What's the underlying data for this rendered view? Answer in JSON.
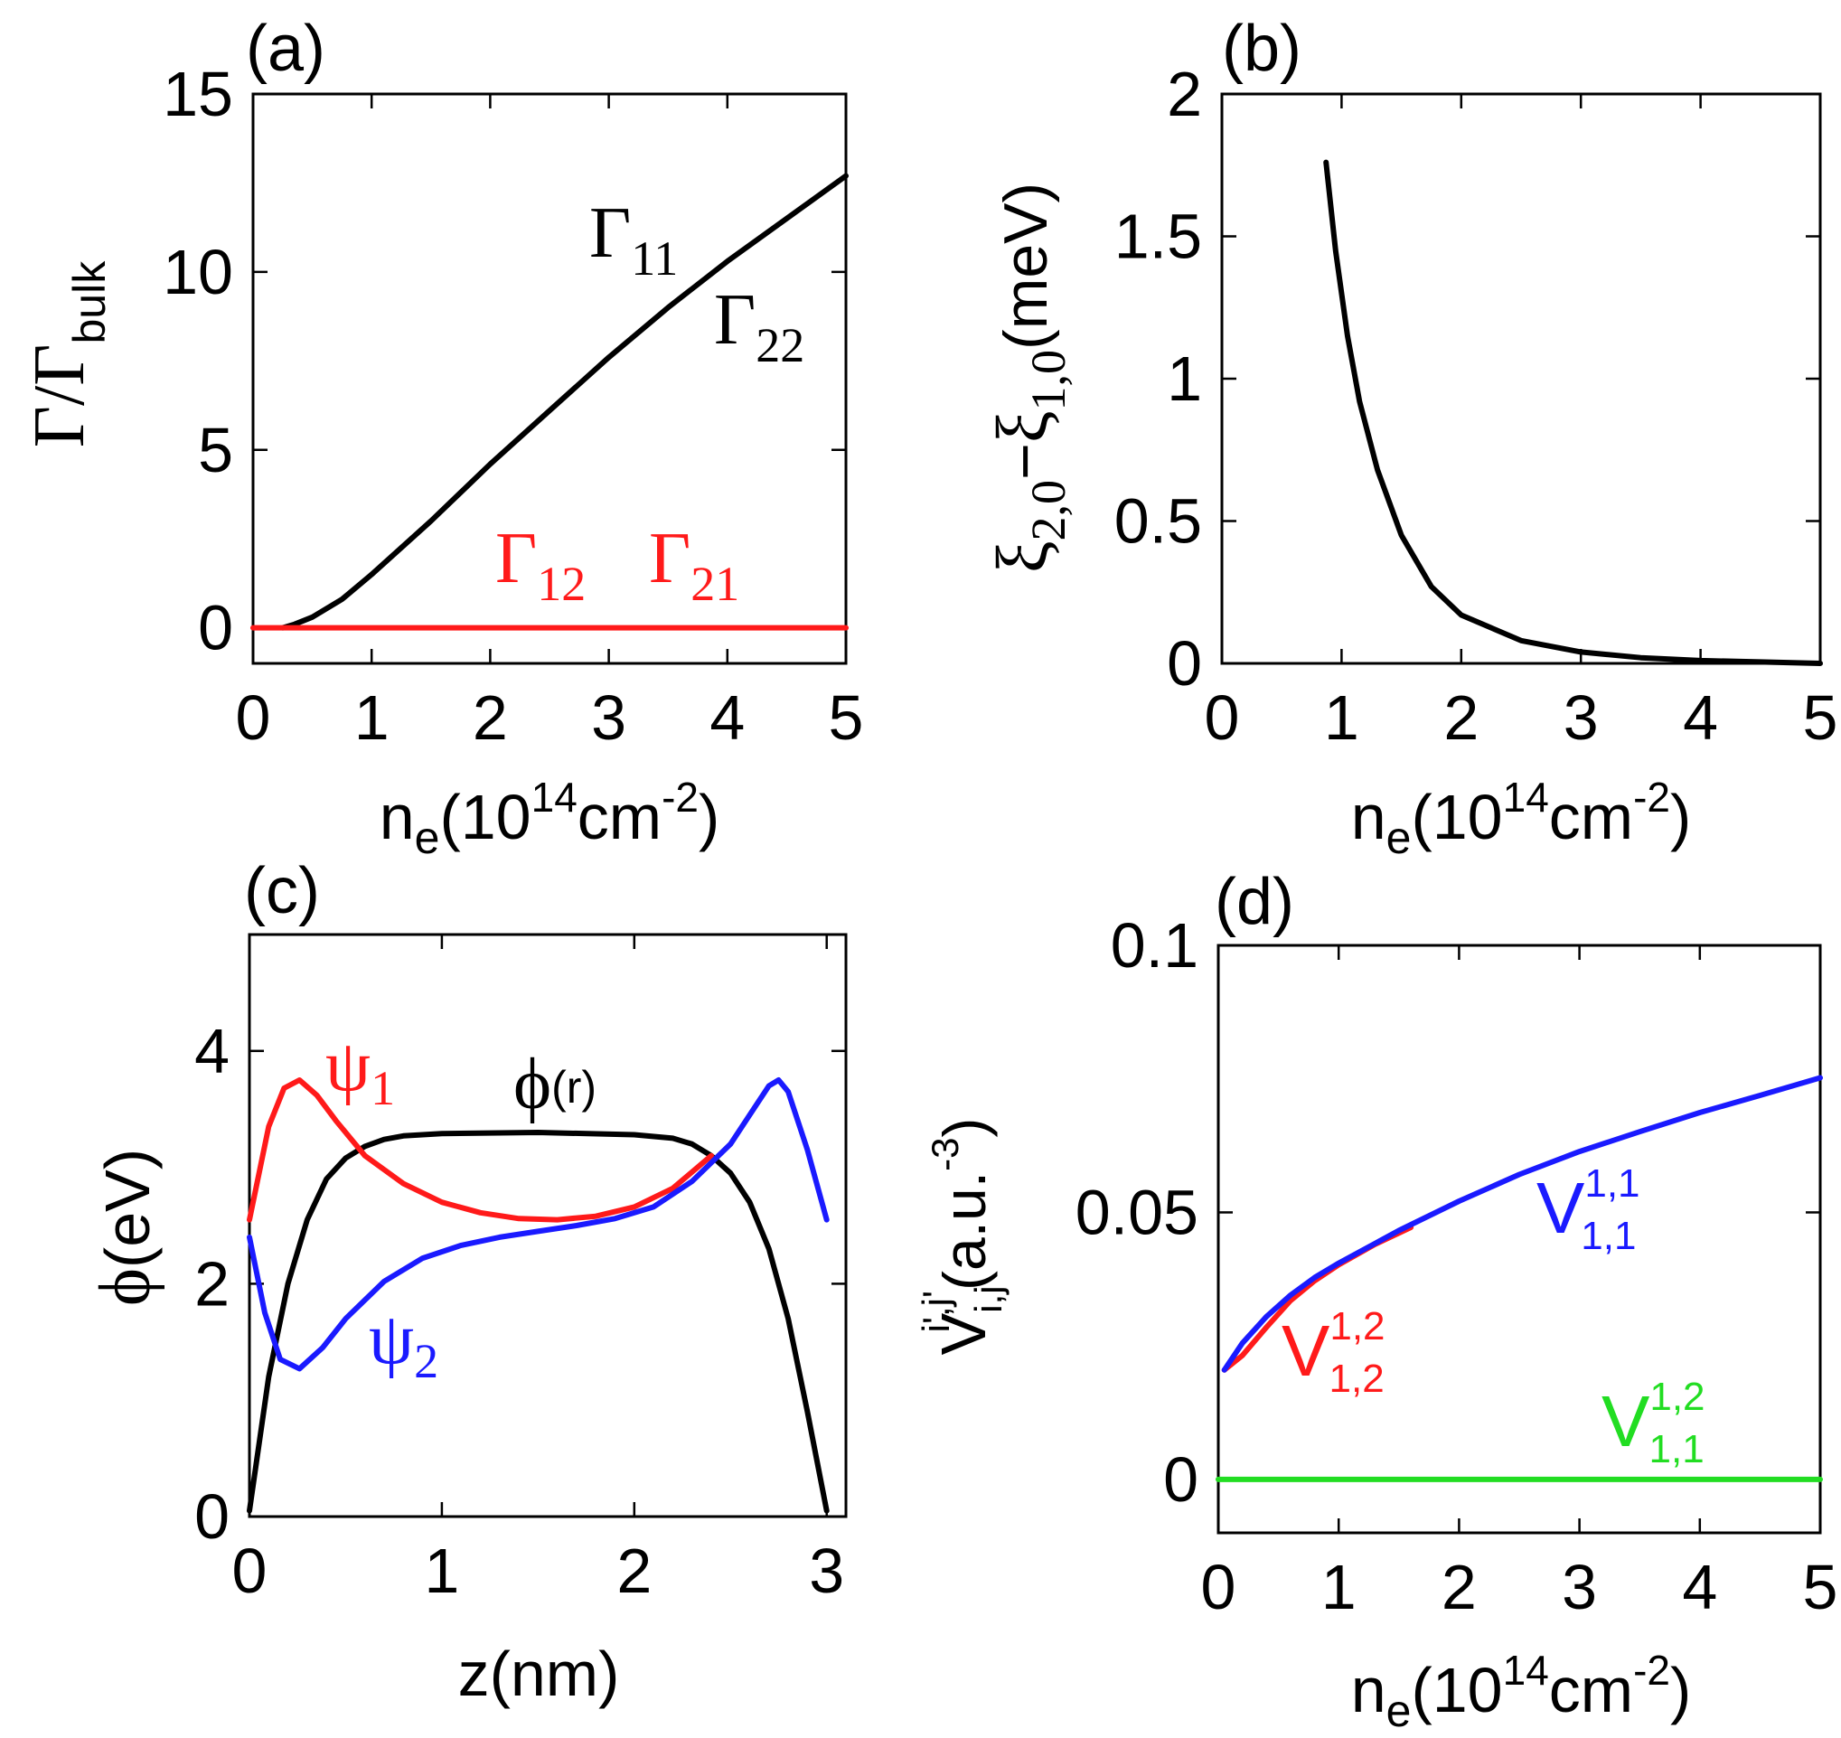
{
  "colors": {
    "black": "#000000",
    "red": "#ff1a1a",
    "blue": "#1a1aff",
    "green": "#22dd22"
  },
  "chart_data": [
    {
      "id": "a",
      "type": "line",
      "panel_label": "(a)",
      "xlabel": {
        "base": "n",
        "sub": "e",
        "mid": "(10",
        "sup": "14",
        "tail": "cm",
        "sup2": "-2",
        "close": ")"
      },
      "ylabel": {
        "sym1": "Γ",
        "slash": "/",
        "sym2": "Γ",
        "sub": "bulk"
      },
      "xlim": [
        0,
        5
      ],
      "ylim": [
        -1,
        15
      ],
      "xticks": [
        0,
        1,
        2,
        3,
        4,
        5
      ],
      "xtick_labels": [
        "0",
        "1",
        "2",
        "3",
        "4",
        "5"
      ],
      "yticks": [
        0,
        5,
        10,
        15
      ],
      "ytick_labels": [
        "0",
        "5",
        "10",
        "15"
      ],
      "series": [
        {
          "name": "Γ11 = Γ22",
          "color": "#000000",
          "x": [
            0.25,
            0.35,
            0.5,
            0.75,
            1.0,
            1.5,
            2.0,
            2.5,
            3.0,
            3.5,
            4.0,
            4.5,
            5.0
          ],
          "y": [
            0.0,
            0.1,
            0.3,
            0.8,
            1.5,
            3.0,
            4.6,
            6.1,
            7.6,
            9.0,
            10.3,
            11.5,
            12.7
          ]
        },
        {
          "name": "Γ12 = Γ21",
          "color": "#ff1a1a",
          "x": [
            0.0,
            5.0
          ],
          "y": [
            0.0,
            0.0
          ]
        }
      ],
      "annotations": [
        {
          "sym": "Γ",
          "sub": "11",
          "color": "#000000"
        },
        {
          "sym": "Γ",
          "sub": "22",
          "color": "#000000"
        },
        {
          "sym": "Γ",
          "sub": "12",
          "color": "#ff1a1a"
        },
        {
          "sym": "Γ",
          "sub": "21",
          "color": "#ff1a1a"
        }
      ]
    },
    {
      "id": "b",
      "type": "line",
      "panel_label": "(b)",
      "xlabel": {
        "base": "n",
        "sub": "e",
        "mid": "(10",
        "sup": "14",
        "tail": "cm",
        "sup2": "-2",
        "close": ")"
      },
      "ylabel": {
        "sym1": "ξ",
        "sub1": "2,0",
        "minus": "−",
        "sym2": "ξ",
        "sub2": "1,0",
        "unit": "(meV)"
      },
      "xlim": [
        0,
        5
      ],
      "ylim": [
        0,
        2
      ],
      "xticks": [
        0,
        1,
        2,
        3,
        4,
        5
      ],
      "xtick_labels": [
        "0",
        "1",
        "2",
        "3",
        "4",
        "5"
      ],
      "yticks": [
        0,
        0.5,
        1,
        1.5,
        2
      ],
      "ytick_labels": [
        "0",
        "0.5",
        "1",
        "1.5",
        "2"
      ],
      "series": [
        {
          "name": "ξ2,0 − ξ1,0",
          "color": "#000000",
          "x": [
            0.87,
            0.95,
            1.05,
            1.15,
            1.3,
            1.5,
            1.75,
            2.0,
            2.5,
            3.0,
            3.5,
            4.0,
            4.5,
            5.0
          ],
          "y": [
            1.76,
            1.45,
            1.15,
            0.92,
            0.68,
            0.45,
            0.27,
            0.17,
            0.08,
            0.04,
            0.02,
            0.01,
            0.005,
            0.0
          ]
        }
      ]
    },
    {
      "id": "c",
      "type": "line",
      "panel_label": "(c)",
      "xlabel": {
        "text": "z(nm)"
      },
      "ylabel": {
        "sym": "ϕ",
        "unit": "(eV)"
      },
      "xlim": [
        0,
        3.1
      ],
      "ylim": [
        0,
        5
      ],
      "xticks": [
        0,
        1,
        2,
        3
      ],
      "xtick_labels": [
        "0",
        "1",
        "2",
        "3"
      ],
      "yticks": [
        0,
        2,
        4
      ],
      "ytick_labels": [
        "0",
        "2",
        "4"
      ],
      "series": [
        {
          "name": "ϕ(r)",
          "color": "#000000",
          "x": [
            0.0,
            0.1,
            0.2,
            0.3,
            0.4,
            0.5,
            0.6,
            0.7,
            0.8,
            1.0,
            1.5,
            2.0,
            2.2,
            2.3,
            2.4,
            2.5,
            2.6,
            2.7,
            2.8,
            2.9,
            3.0
          ],
          "y": [
            0.05,
            1.2,
            2.0,
            2.55,
            2.9,
            3.08,
            3.18,
            3.24,
            3.27,
            3.29,
            3.3,
            3.28,
            3.25,
            3.2,
            3.1,
            2.95,
            2.7,
            2.3,
            1.7,
            0.9,
            0.05
          ]
        },
        {
          "name": "ψ1",
          "color": "#ff1a1a",
          "x": [
            0.0,
            0.1,
            0.18,
            0.26,
            0.35,
            0.45,
            0.6,
            0.8,
            1.0,
            1.2,
            1.4,
            1.6,
            1.8,
            2.0,
            2.2,
            2.4
          ],
          "y": [
            2.55,
            3.35,
            3.68,
            3.75,
            3.62,
            3.4,
            3.1,
            2.86,
            2.7,
            2.61,
            2.56,
            2.55,
            2.58,
            2.66,
            2.82,
            3.1
          ]
        },
        {
          "name": "ψ2",
          "color": "#1a1aff",
          "x": [
            0.0,
            0.08,
            0.16,
            0.26,
            0.38,
            0.5,
            0.7,
            0.9,
            1.1,
            1.3,
            1.5,
            1.7,
            1.9,
            2.1,
            2.3,
            2.5,
            2.6,
            2.7,
            2.75,
            2.8,
            2.9,
            3.0
          ],
          "y": [
            2.4,
            1.75,
            1.35,
            1.27,
            1.45,
            1.7,
            2.02,
            2.22,
            2.33,
            2.4,
            2.45,
            2.5,
            2.56,
            2.66,
            2.88,
            3.2,
            3.45,
            3.7,
            3.75,
            3.65,
            3.15,
            2.55
          ]
        }
      ],
      "annotations": [
        {
          "sym": "ψ",
          "sub": "1",
          "color": "#ff1a1a"
        },
        {
          "sym": "ϕ",
          "sub": "(r)",
          "color": "#000000"
        },
        {
          "sym": "ψ",
          "sub": "2",
          "color": "#1a1aff"
        }
      ]
    },
    {
      "id": "d",
      "type": "line",
      "panel_label": "(d)",
      "xlabel": {
        "base": "n",
        "sub": "e",
        "mid": "(10",
        "sup": "14",
        "tail": "cm",
        "sup2": "-2",
        "close": ")"
      },
      "ylabel": {
        "sym": "V",
        "sub": "i,j",
        "sup": "i',j'",
        "unit": "(a.u.",
        "sup2": "-3",
        "close": ")"
      },
      "xlim": [
        0,
        5
      ],
      "ylim": [
        -0.01,
        0.1
      ],
      "xticks": [
        0,
        1,
        2,
        3,
        4,
        5
      ],
      "xtick_labels": [
        "0",
        "1",
        "2",
        "3",
        "4",
        "5"
      ],
      "yticks": [
        0,
        0.05,
        0.1
      ],
      "ytick_labels": [
        "0",
        "0.05",
        "0.1"
      ],
      "series": [
        {
          "name": "V1,2^1,2",
          "color": "#ff1a1a",
          "x": [
            0.05,
            0.2,
            0.4,
            0.6,
            0.8,
            1.0,
            1.3,
            1.6
          ],
          "y": [
            0.0205,
            0.0232,
            0.0285,
            0.0335,
            0.0372,
            0.0402,
            0.044,
            0.0472
          ]
        },
        {
          "name": "V1,1^1,1",
          "color": "#1a1aff",
          "x": [
            0.05,
            0.2,
            0.4,
            0.6,
            0.8,
            1.0,
            1.5,
            2.0,
            2.5,
            3.0,
            3.5,
            4.0,
            4.5,
            5.0
          ],
          "y": [
            0.0205,
            0.0255,
            0.0305,
            0.0345,
            0.0378,
            0.0405,
            0.0466,
            0.0521,
            0.0571,
            0.0614,
            0.0651,
            0.0687,
            0.0719,
            0.0752
          ]
        },
        {
          "name": "V1,1^1,2",
          "color": "#22dd22",
          "x": [
            0.0,
            5.0
          ],
          "y": [
            0.0,
            0.0
          ]
        }
      ],
      "annotations": [
        {
          "sym": "V",
          "sub": "1,1",
          "sup": "1,1",
          "color": "#1a1aff"
        },
        {
          "sym": "V",
          "sub": "1,2",
          "sup": "1,2",
          "color": "#ff1a1a"
        },
        {
          "sym": "V",
          "sub": "1,1",
          "sup": "1,2",
          "color": "#22dd22"
        }
      ]
    }
  ]
}
